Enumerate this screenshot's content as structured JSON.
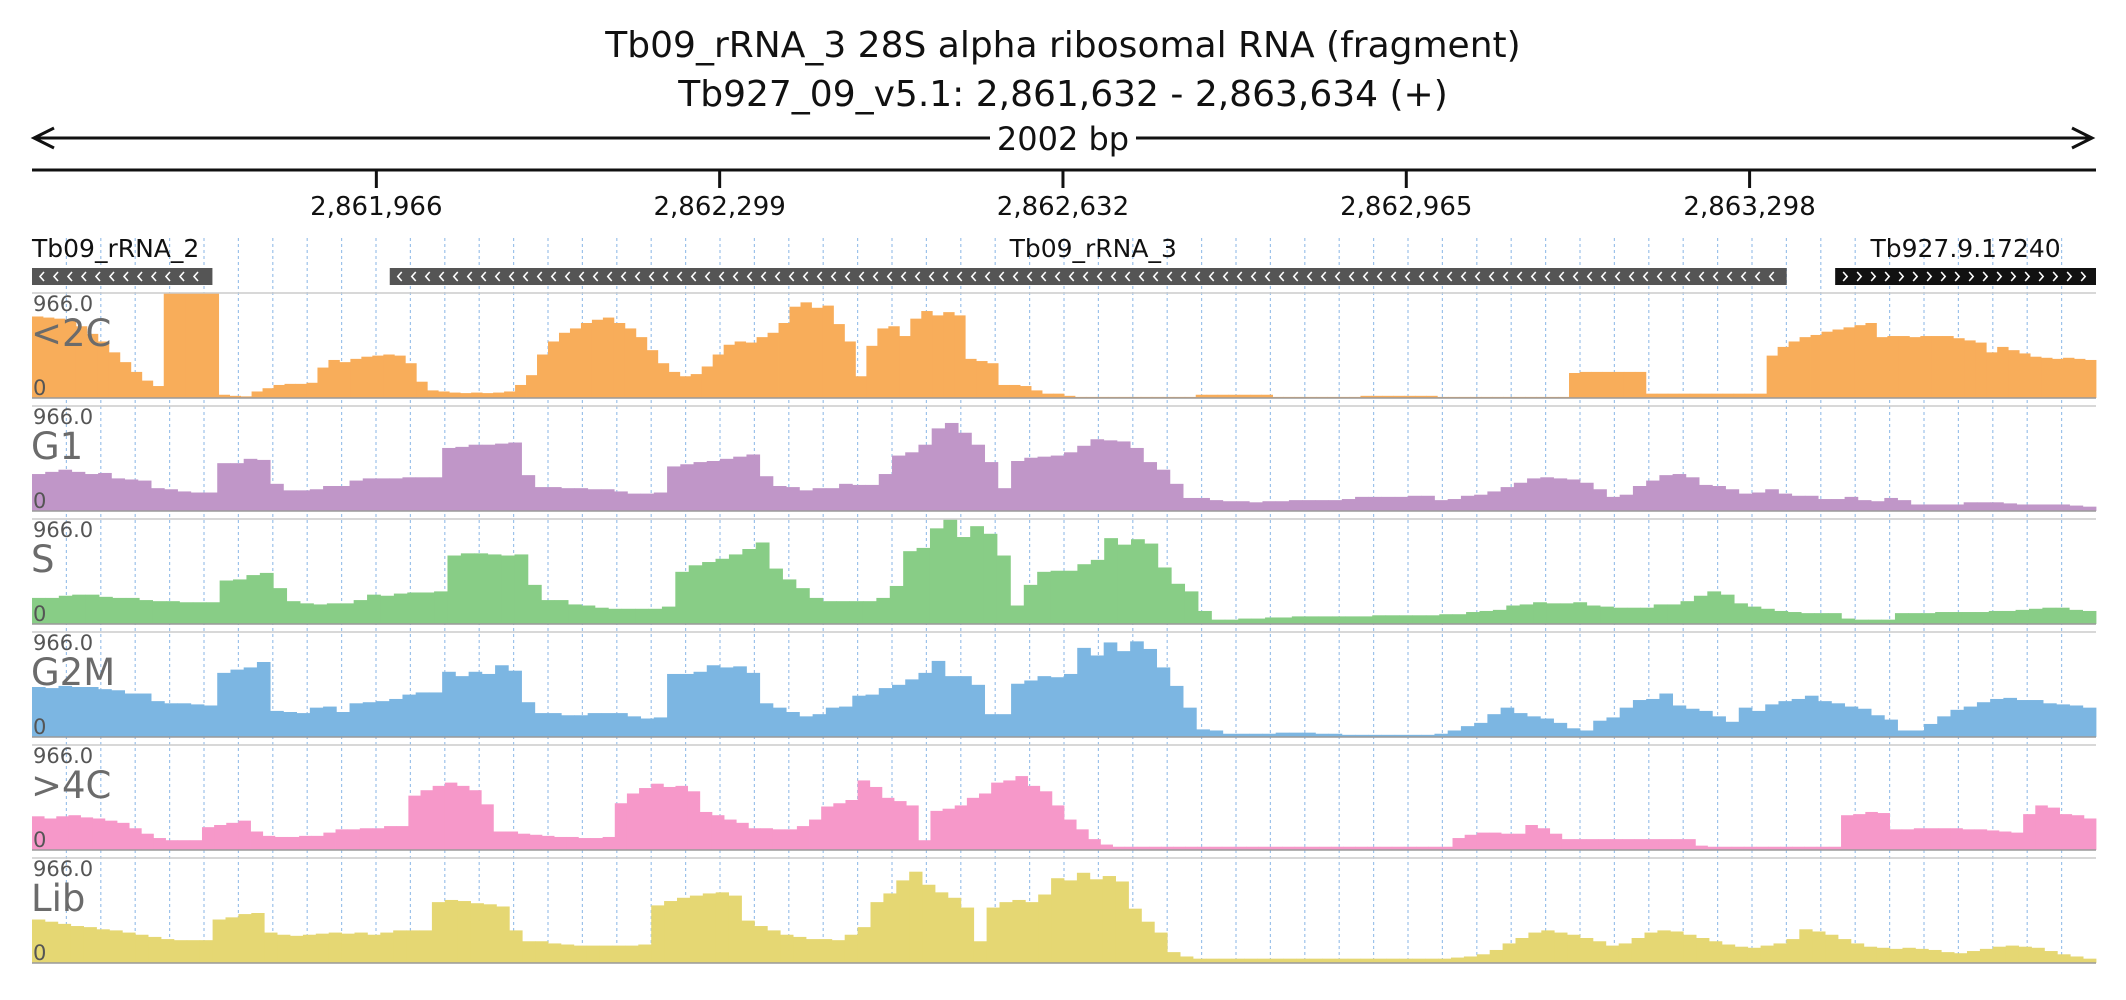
{
  "header": {
    "title": "Tb09_rRNA_3  28S alpha ribosomal RNA (fragment)",
    "locus": "Tb927_09_v5.1: 2,861,632 - 2,863,634 (+)",
    "span_label": "2002 bp"
  },
  "chart_data": {
    "type": "bar",
    "x_range": [
      2861632,
      2863634
    ],
    "ruler_ticks": [
      {
        "pos": 2861966,
        "label": "2,861,966"
      },
      {
        "pos": 2862299,
        "label": "2,862,299"
      },
      {
        "pos": 2862632,
        "label": "2,862,632"
      },
      {
        "pos": 2862965,
        "label": "2,862,965"
      },
      {
        "pos": 2863298,
        "label": "2,863,298"
      }
    ],
    "grid": true,
    "features": [
      {
        "name": "Tb09_rRNA_2",
        "start": 2861632,
        "end": 2861807,
        "strand": "-",
        "color": "#555555"
      },
      {
        "name": "Tb09_rRNA_3",
        "start": 2861979,
        "end": 2863334,
        "strand": "-",
        "color": "#555555"
      },
      {
        "name": "Tb927.9.17240",
        "start": 2863381,
        "end": 2863634,
        "strand": "+",
        "color": "#111111"
      }
    ],
    "ylim": [
      0,
      966.0
    ],
    "y_max_label": "966.0",
    "y_min_label": "0",
    "series": [
      {
        "name": "<2C",
        "color": "#f8ad5a",
        "values": [
          750,
          740,
          730,
          710,
          660,
          590,
          520,
          420,
          330,
          240,
          160,
          110,
          970,
          970,
          970,
          970,
          970,
          30,
          20,
          15,
          60,
          90,
          120,
          130,
          130,
          140,
          280,
          350,
          330,
          360,
          380,
          390,
          400,
          390,
          320,
          150,
          70,
          60,
          50,
          45,
          50,
          45,
          50,
          60,
          120,
          210,
          400,
          520,
          600,
          640,
          690,
          720,
          740,
          690,
          640,
          560,
          440,
          320,
          240,
          200,
          220,
          290,
          400,
          490,
          520,
          510,
          560,
          600,
          690,
          840,
          880,
          830,
          850,
          680,
          520,
          200,
          480,
          640,
          660,
          570,
          730,
          800,
          760,
          790,
          760,
          360,
          340,
          320,
          120,
          120,
          110,
          70,
          40,
          40,
          20,
          10,
          10,
          10,
          10,
          10,
          10,
          10,
          10,
          10,
          10,
          10,
          30,
          30,
          30,
          30,
          30,
          30,
          30,
          10,
          10,
          10,
          10,
          10,
          10,
          10,
          10,
          20,
          20,
          20,
          20,
          20,
          20,
          20,
          10,
          10,
          10,
          10,
          10,
          10,
          10,
          10,
          10,
          10,
          10,
          10,
          230,
          240,
          240,
          240,
          240,
          240,
          240,
          40,
          40,
          40,
          40,
          40,
          40,
          40,
          40,
          40,
          40,
          40,
          390,
          470,
          520,
          560,
          580,
          610,
          630,
          650,
          670,
          690,
          560,
          570,
          570,
          560,
          570,
          570,
          570,
          550,
          530,
          510,
          420,
          470,
          440,
          410,
          380,
          370,
          360,
          370,
          360,
          350
        ]
      },
      {
        "name": "G1",
        "color": "#c096c8",
        "values": [
          340,
          360,
          380,
          360,
          340,
          350,
          300,
          290,
          280,
          210,
          200,
          180,
          170,
          170,
          440,
          440,
          480,
          470,
          250,
          190,
          190,
          200,
          230,
          230,
          280,
          300,
          300,
          300,
          310,
          310,
          310,
          580,
          590,
          610,
          610,
          620,
          630,
          330,
          220,
          220,
          210,
          210,
          200,
          200,
          180,
          160,
          160,
          170,
          410,
          430,
          450,
          460,
          480,
          500,
          520,
          320,
          230,
          220,
          190,
          210,
          210,
          250,
          240,
          240,
          340,
          510,
          540,
          610,
          760,
          810,
          720,
          610,
          450,
          210,
          460,
          490,
          500,
          510,
          540,
          600,
          660,
          650,
          640,
          580,
          450,
          380,
          250,
          120,
          120,
          100,
          90,
          90,
          80,
          90,
          90,
          100,
          100,
          100,
          100,
          110,
          130,
          130,
          130,
          130,
          140,
          140,
          100,
          110,
          140,
          150,
          180,
          220,
          260,
          300,
          310,
          300,
          290,
          260,
          200,
          130,
          150,
          230,
          280,
          330,
          340,
          310,
          240,
          230,
          200,
          160,
          170,
          200,
          160,
          140,
          140,
          110,
          110,
          130,
          100,
          90,
          120,
          100,
          60,
          60,
          60,
          60,
          80,
          80,
          80,
          70,
          60,
          60,
          60,
          60,
          50,
          40
        ]
      },
      {
        "name": "S",
        "color": "#88cd86",
        "values": [
          240,
          240,
          260,
          270,
          270,
          250,
          240,
          240,
          220,
          210,
          210,
          200,
          200,
          200,
          400,
          410,
          450,
          470,
          330,
          210,
          190,
          180,
          190,
          190,
          220,
          270,
          260,
          280,
          290,
          290,
          300,
          630,
          650,
          650,
          640,
          630,
          640,
          360,
          220,
          220,
          180,
          170,
          150,
          140,
          140,
          140,
          140,
          160,
          480,
          540,
          570,
          600,
          640,
          690,
          750,
          510,
          410,
          330,
          240,
          210,
          210,
          210,
          210,
          240,
          350,
          670,
          700,
          880,
          960,
          800,
          900,
          830,
          630,
          170,
          360,
          480,
          490,
          490,
          550,
          590,
          790,
          730,
          780,
          740,
          520,
          370,
          300,
          120,
          40,
          40,
          50,
          50,
          60,
          60,
          70,
          70,
          70,
          70,
          70,
          70,
          80,
          80,
          80,
          80,
          80,
          90,
          90,
          110,
          120,
          130,
          170,
          180,
          200,
          190,
          190,
          200,
          170,
          160,
          150,
          150,
          150,
          180,
          180,
          210,
          260,
          300,
          270,
          190,
          160,
          140,
          120,
          110,
          100,
          100,
          100,
          50,
          40,
          40,
          40,
          100,
          100,
          100,
          110,
          110,
          110,
          110,
          120,
          120,
          130,
          140,
          150,
          150,
          130,
          120
        ]
      },
      {
        "name": "G2M",
        "color": "#7cb6e2",
        "values": [
          460,
          450,
          470,
          460,
          460,
          440,
          430,
          400,
          400,
          330,
          310,
          310,
          300,
          290,
          590,
          620,
          640,
          690,
          240,
          230,
          220,
          270,
          280,
          230,
          310,
          320,
          330,
          350,
          390,
          410,
          410,
          600,
          560,
          600,
          580,
          660,
          610,
          320,
          220,
          220,
          200,
          200,
          220,
          220,
          220,
          190,
          170,
          180,
          580,
          580,
          600,
          660,
          640,
          650,
          590,
          310,
          270,
          230,
          190,
          210,
          270,
          280,
          380,
          390,
          450,
          480,
          530,
          590,
          700,
          560,
          560,
          480,
          210,
          210,
          490,
          520,
          560,
          550,
          580,
          820,
          750,
          870,
          790,
          880,
          810,
          640,
          470,
          270,
          70,
          60,
          30,
          30,
          30,
          30,
          40,
          40,
          40,
          30,
          30,
          20,
          20,
          20,
          20,
          20,
          20,
          20,
          30,
          60,
          100,
          130,
          210,
          270,
          220,
          190,
          170,
          130,
          80,
          60,
          150,
          180,
          270,
          340,
          350,
          400,
          290,
          260,
          240,
          190,
          140,
          270,
          240,
          300,
          330,
          350,
          380,
          330,
          310,
          280,
          260,
          200,
          160,
          60,
          60,
          120,
          190,
          250,
          280,
          320,
          350,
          360,
          340,
          340,
          310,
          300,
          290,
          270
        ]
      },
      {
        "name": ">4C",
        "color": "#f698c9",
        "values": [
          310,
          290,
          310,
          320,
          300,
          290,
          270,
          250,
          200,
          150,
          110,
          90,
          90,
          90,
          210,
          230,
          250,
          270,
          170,
          130,
          120,
          120,
          130,
          130,
          160,
          190,
          190,
          200,
          200,
          220,
          220,
          500,
          550,
          590,
          620,
          590,
          550,
          420,
          170,
          170,
          150,
          140,
          130,
          120,
          120,
          110,
          110,
          120,
          430,
          520,
          570,
          610,
          580,
          590,
          540,
          350,
          320,
          280,
          250,
          200,
          200,
          190,
          190,
          220,
          280,
          400,
          430,
          460,
          640,
          580,
          480,
          450,
          410,
          90,
          360,
          380,
          410,
          480,
          520,
          620,
          640,
          680,
          590,
          540,
          410,
          280,
          190,
          100,
          50,
          30,
          30,
          30,
          30,
          30,
          30,
          30,
          30,
          30,
          30,
          30,
          30,
          30,
          30,
          30,
          30,
          30,
          30,
          30,
          30,
          30,
          30,
          30,
          30,
          30,
          30,
          30,
          30,
          110,
          140,
          160,
          160,
          150,
          150,
          230,
          200,
          150,
          100,
          100,
          100,
          100,
          100,
          100,
          100,
          100,
          100,
          100,
          100,
          40,
          30,
          30,
          30,
          30,
          30,
          30,
          30,
          30,
          30,
          30,
          30,
          320,
          330,
          350,
          340,
          190,
          190,
          200,
          200,
          200,
          200,
          190,
          190,
          180,
          170,
          160,
          330,
          410,
          390,
          330,
          320,
          290
        ]
      },
      {
        "name": "Lib",
        "color": "#e5d773",
        "values": [
          400,
          380,
          360,
          340,
          330,
          310,
          300,
          280,
          260,
          240,
          220,
          210,
          210,
          210,
          400,
          420,
          450,
          460,
          280,
          260,
          250,
          260,
          270,
          280,
          270,
          280,
          260,
          280,
          300,
          300,
          300,
          560,
          580,
          570,
          550,
          540,
          520,
          300,
          200,
          200,
          180,
          170,
          160,
          160,
          160,
          160,
          160,
          170,
          530,
          570,
          600,
          620,
          640,
          650,
          620,
          390,
          340,
          300,
          260,
          240,
          220,
          220,
          210,
          260,
          330,
          560,
          640,
          760,
          840,
          720,
          650,
          600,
          510,
          200,
          510,
          560,
          580,
          560,
          630,
          780,
          760,
          830,
          770,
          800,
          750,
          500,
          380,
          280,
          100,
          60,
          40,
          40,
          40,
          40,
          40,
          40,
          40,
          40,
          40,
          40,
          40,
          40,
          40,
          40,
          40,
          40,
          40,
          40,
          40,
          40,
          50,
          60,
          80,
          120,
          180,
          230,
          280,
          300,
          280,
          260,
          230,
          200,
          160,
          180,
          230,
          280,
          300,
          290,
          260,
          230,
          200,
          170,
          150,
          140,
          160,
          180,
          220,
          310,
          290,
          260,
          220,
          180,
          150,
          140,
          130,
          140,
          130,
          120,
          100,
          90,
          110,
          130,
          150,
          160,
          150,
          140,
          110,
          80,
          60,
          40
        ]
      }
    ]
  }
}
